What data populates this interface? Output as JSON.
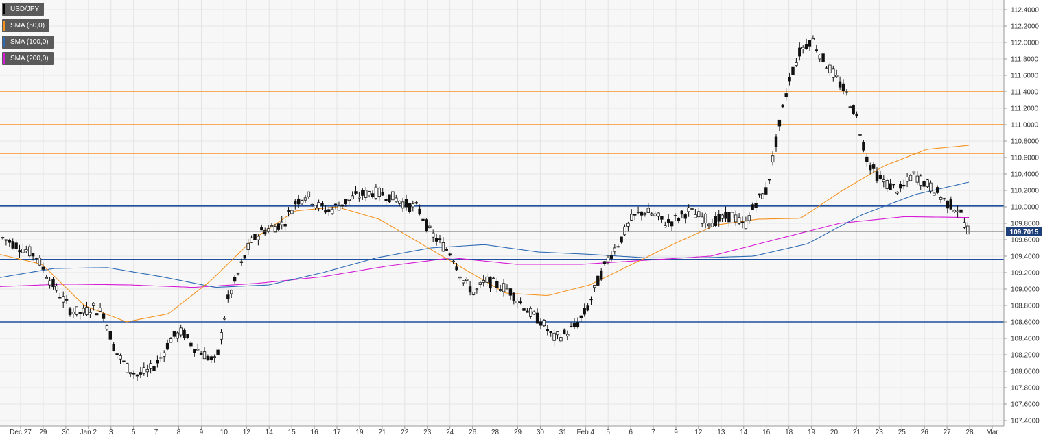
{
  "legend": [
    {
      "label": "USD/JPY",
      "color": "#000000"
    },
    {
      "label": "SMA (50,0)",
      "color": "#f5921e"
    },
    {
      "label": "SMA (100,0)",
      "color": "#2e6bb5"
    },
    {
      "label": "SMA (200,0)",
      "color": "#d61ad6"
    }
  ],
  "chart_data": {
    "type": "candlestick",
    "symbol": "USD/JPY",
    "grid": true,
    "ylim": [
      107.4,
      112.5
    ],
    "y_ticks": [
      "112.4000",
      "112.2000",
      "112.0000",
      "111.8000",
      "111.6000",
      "111.4000",
      "111.2000",
      "111.0000",
      "110.8000",
      "110.6000",
      "110.4000",
      "110.2000",
      "110.0000",
      "109.8000",
      "109.6000",
      "109.4000",
      "109.2000",
      "109.0000",
      "108.8000",
      "108.6000",
      "108.4000",
      "108.2000",
      "108.0000",
      "107.8000",
      "107.6000",
      "107.4000"
    ],
    "x_ticks": [
      "Dec 27",
      "29",
      "30",
      "Jan 2",
      "3",
      "5",
      "7",
      "8",
      "9",
      "10",
      "12",
      "14",
      "15",
      "16",
      "17",
      "19",
      "21",
      "22",
      "23",
      "24",
      "26",
      "28",
      "29",
      "30",
      "31",
      "Feb 4",
      "5",
      "6",
      "7",
      "9",
      "12",
      "13",
      "14",
      "16",
      "18",
      "19",
      "20",
      "21",
      "23",
      "25",
      "26",
      "27",
      "28",
      "Mar"
    ],
    "last_price": "109.7015",
    "last_price_color": "#1f3f7a",
    "horizontal_levels": [
      {
        "value": 111.4,
        "color": "#f5921e"
      },
      {
        "value": 111.0,
        "color": "#f5921e"
      },
      {
        "value": 110.65,
        "color": "#f5921e"
      },
      {
        "value": 110.01,
        "color": "#1f4f9e"
      },
      {
        "value": 109.36,
        "color": "#1f4f9e"
      },
      {
        "value": 108.6,
        "color": "#1f4f9e"
      }
    ],
    "price_path": [
      109.62,
      109.55,
      109.48,
      109.4,
      109.15,
      108.95,
      108.75,
      108.7,
      108.78,
      108.7,
      108.25,
      108.05,
      107.95,
      108.0,
      108.15,
      108.4,
      108.48,
      108.3,
      108.2,
      108.1,
      108.85,
      109.2,
      109.55,
      109.7,
      109.75,
      109.8,
      110.05,
      110.15,
      110.02,
      109.95,
      110.02,
      110.1,
      110.15,
      110.18,
      110.15,
      110.1,
      110.02,
      109.98,
      109.7,
      109.55,
      109.42,
      109.1,
      108.95,
      109.1,
      109.05,
      109.0,
      108.85,
      108.7,
      108.6,
      108.4,
      108.45,
      108.55,
      108.75,
      109.1,
      109.4,
      109.6,
      109.85,
      109.95,
      109.9,
      109.8,
      109.85,
      109.95,
      109.88,
      109.82,
      109.85,
      109.9,
      109.75,
      110.05,
      110.2,
      110.9,
      111.55,
      111.9,
      112.05,
      111.8,
      111.6,
      111.4,
      111.1,
      110.55,
      110.35,
      110.25,
      110.2,
      110.4,
      110.3,
      110.2,
      110.05,
      109.98,
      109.7
    ],
    "sma50": [
      109.42,
      109.3,
      108.8,
      108.6,
      108.7,
      109.1,
      109.6,
      109.95,
      110.0,
      109.85,
      109.55,
      109.25,
      108.95,
      108.92,
      109.05,
      109.3,
      109.55,
      109.78,
      109.85,
      109.86,
      110.2,
      110.5,
      110.7,
      110.75
    ],
    "sma100": [
      109.14,
      109.25,
      109.26,
      109.15,
      109.02,
      109.05,
      109.2,
      109.38,
      109.5,
      109.54,
      109.45,
      109.42,
      109.38,
      109.38,
      109.4,
      109.55,
      109.9,
      110.15,
      110.3
    ],
    "sma200": [
      109.03,
      109.06,
      109.05,
      109.02,
      109.07,
      109.15,
      109.28,
      109.38,
      109.3,
      109.3,
      109.35,
      109.4,
      109.6,
      109.8,
      109.88,
      109.87
    ]
  }
}
